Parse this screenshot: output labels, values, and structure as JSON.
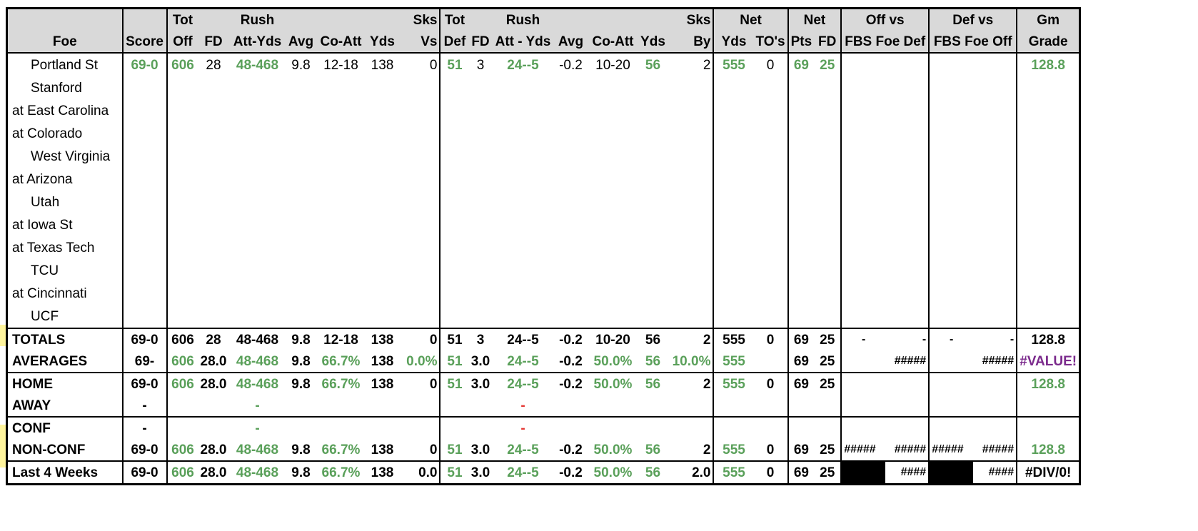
{
  "header": {
    "row1": [
      "",
      "",
      "Tot",
      "",
      "Rush",
      "",
      "",
      "",
      "Sks",
      "Tot",
      "",
      "Rush",
      "",
      "",
      "",
      "Sks",
      "Net",
      "",
      "Net",
      "",
      "Off vs",
      "",
      "Def vs",
      "",
      "Gm"
    ],
    "row2": [
      "Foe",
      "Score",
      "Off",
      "FD",
      "Att-Yds",
      "Avg",
      "Co-Att",
      "Yds",
      "Vs",
      "Def",
      "FD",
      "Att - Yds",
      "Avg",
      "Co-Att",
      "Yds",
      "By",
      "Yds",
      "TO's",
      "Pts",
      "FD",
      "FBS Foe Def",
      "",
      "FBS Foe Off",
      "",
      "Grade"
    ]
  },
  "games": [
    {
      "foe": "Portland St",
      "away": false,
      "score": "69-0",
      "tot_off": "606",
      "fd": "28",
      "rush": "48-468",
      "avg": "9.8",
      "co_att": "12-18",
      "yds": "138",
      "sks_vs": "0",
      "tot_def": "51",
      "dfd": "3",
      "drush": "24--5",
      "davg": "-0.2",
      "dco_att": "10-20",
      "dyds": "56",
      "sks_by": "2",
      "net_yds": "555",
      "tos": "0",
      "net_pts": "69",
      "net_fd": "25",
      "grade": "128.8"
    },
    {
      "foe": "Stanford",
      "away": false
    },
    {
      "foe": "at East Carolina",
      "away": true
    },
    {
      "foe": "at Colorado",
      "away": true
    },
    {
      "foe": "West Virginia",
      "away": false
    },
    {
      "foe": "at Arizona",
      "away": true
    },
    {
      "foe": "Utah",
      "away": false
    },
    {
      "foe": "at Iowa St",
      "away": true
    },
    {
      "foe": "at Texas Tech",
      "away": true
    },
    {
      "foe": "TCU",
      "away": false
    },
    {
      "foe": "at Cincinnati",
      "away": true
    },
    {
      "foe": "UCF",
      "away": false
    }
  ],
  "totals": {
    "label": "TOTALS",
    "score": "69-0",
    "tot_off": "606",
    "fd": "28",
    "rush": "48-468",
    "avg": "9.8",
    "co_att": "12-18",
    "yds": "138",
    "sks_vs": "0",
    "tot_def": "51",
    "dfd": "3",
    "drush": "24--5",
    "davg": "-0.2",
    "dco_att": "10-20",
    "dyds": "56",
    "sks_by": "2",
    "net_yds": "555",
    "tos": "0",
    "net_pts": "69",
    "net_fd": "25",
    "offa": "-",
    "offb": "-",
    "defa": "-",
    "defb": "-",
    "grade": "128.8"
  },
  "averages": {
    "label": "AVERAGES",
    "score": "69-",
    "tot_off": "606",
    "fd": "28.0",
    "rush": "48-468",
    "avg": "9.8",
    "co_att": "66.7%",
    "yds": "138",
    "sks_vs": "0.0%",
    "tot_def": "51",
    "dfd": "3.0",
    "drush": "24--5",
    "davg": "-0.2",
    "dco_att": "50.0%",
    "dyds": "56",
    "sks_by": "10.0%",
    "net_yds": "555",
    "net_pts": "69",
    "net_fd": "25",
    "offb": "#####",
    "defb": "#####",
    "grade": "#VALUE!"
  },
  "home": {
    "label": "HOME",
    "score": "69-0",
    "tot_off": "606",
    "fd": "28.0",
    "rush": "48-468",
    "avg": "9.8",
    "co_att": "66.7%",
    "yds": "138",
    "sks_vs": "0",
    "tot_def": "51",
    "dfd": "3.0",
    "drush": "24--5",
    "davg": "-0.2",
    "dco_att": "50.0%",
    "dyds": "56",
    "sks_by": "2",
    "net_yds": "555",
    "tos": "0",
    "net_pts": "69",
    "net_fd": "25",
    "grade": "128.8"
  },
  "away": {
    "label": "AWAY",
    "score": "-",
    "rush": "-",
    "drush": "-"
  },
  "conf": {
    "label": "CONF",
    "score": "-",
    "rush": "-",
    "drush": "-"
  },
  "nonconf": {
    "label": "NON-CONF",
    "score": "69-0",
    "tot_off": "606",
    "fd": "28.0",
    "rush": "48-468",
    "avg": "9.8",
    "co_att": "66.7%",
    "yds": "138",
    "sks_vs": "0",
    "tot_def": "51",
    "dfd": "3.0",
    "drush": "24--5",
    "davg": "-0.2",
    "dco_att": "50.0%",
    "dyds": "56",
    "sks_by": "2",
    "net_yds": "555",
    "tos": "0",
    "net_pts": "69",
    "net_fd": "25",
    "offa": "#####",
    "offb": "#####",
    "defa": "#####",
    "defb": "#####",
    "grade": "128.8"
  },
  "last4": {
    "label": "Last 4 Weeks",
    "score": "69-0",
    "tot_off": "606",
    "fd": "28.0",
    "rush": "48-468",
    "avg": "9.8",
    "co_att": "66.7%",
    "yds": "138",
    "sks_vs": "0.0",
    "tot_def": "51",
    "dfd": "3.0",
    "drush": "24--5",
    "davg": "-0.2",
    "dco_att": "50.0%",
    "dyds": "56",
    "sks_by": "2.0",
    "net_yds": "555",
    "tos": "0",
    "net_pts": "69",
    "net_fd": "25",
    "offb": "####",
    "defb": "####",
    "grade": "#DIV/0!"
  },
  "colors": {
    "header_bg": "#d9d9d9",
    "green": "#5aa05a",
    "red": "#e53935",
    "purple": "#7b2a8c",
    "highlight": "#fff59d"
  }
}
